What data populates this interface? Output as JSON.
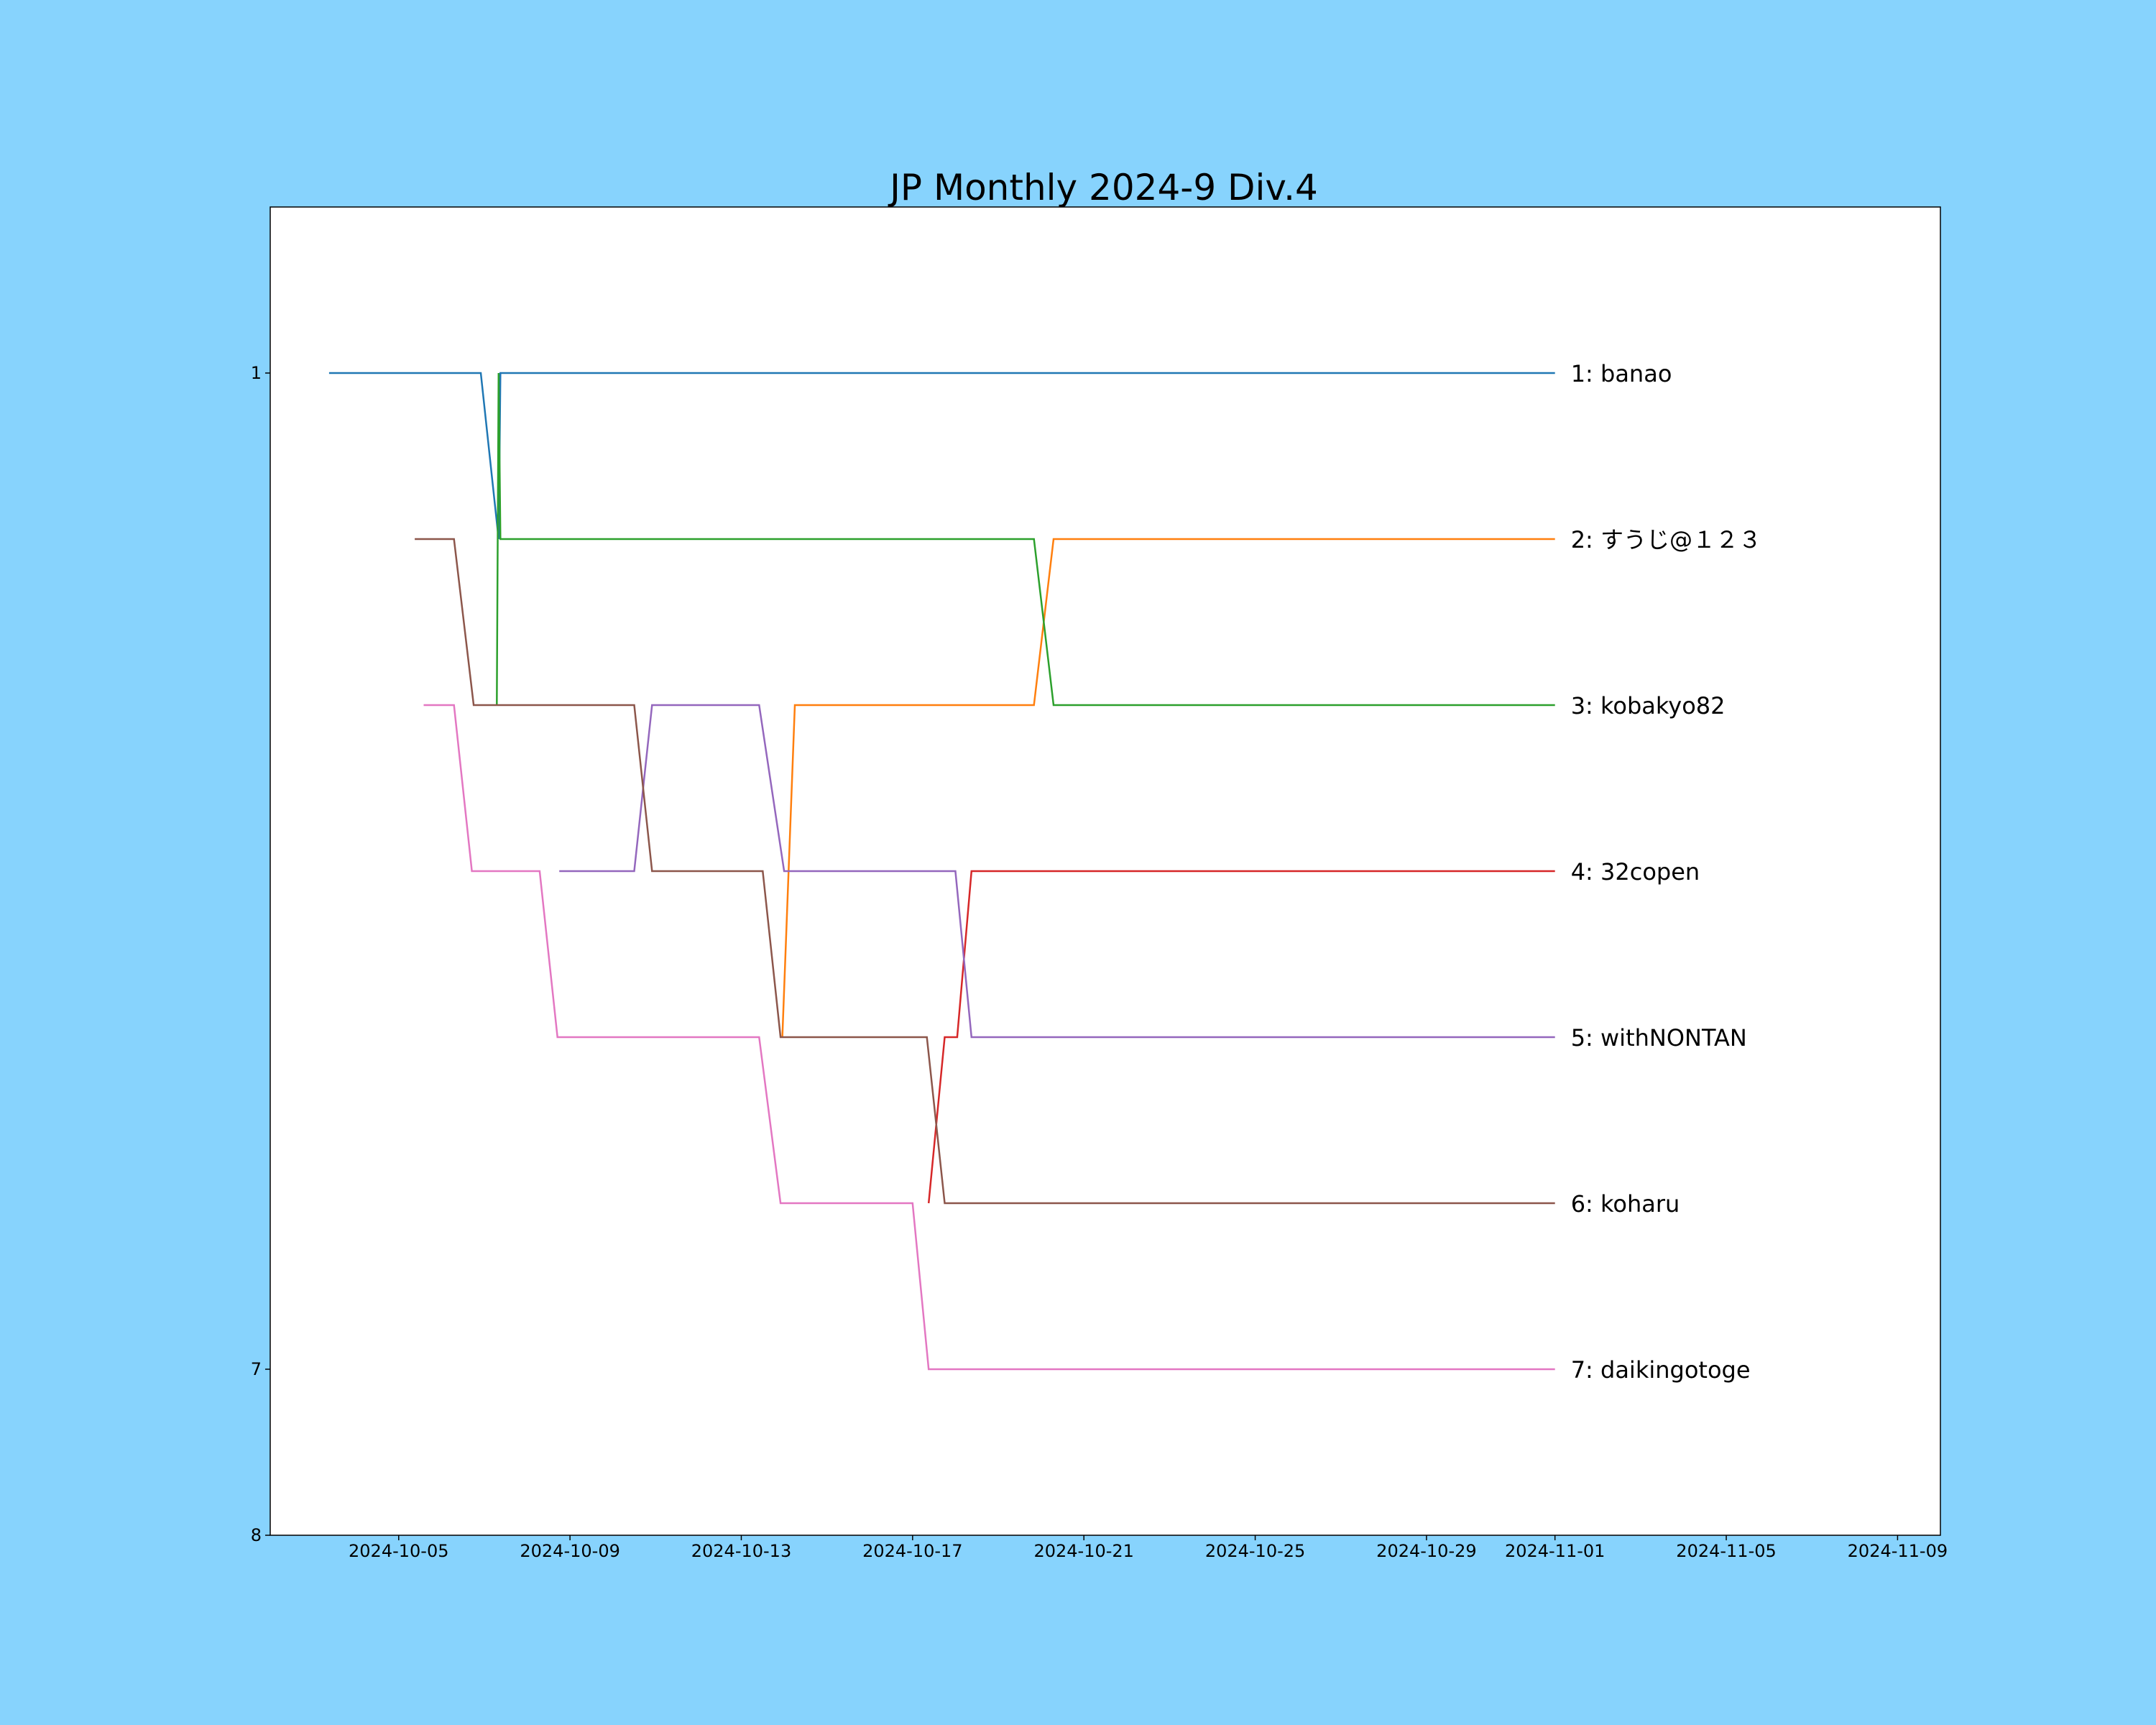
{
  "chart_data": {
    "type": "line",
    "title": "JP Monthly 2024-9 Div.4",
    "xlabel": "",
    "ylabel": "",
    "x_range": [
      "2024-10-02",
      "2024-11-10"
    ],
    "ylim": [
      8,
      0
    ],
    "y_ticks": [
      {
        "value": 1,
        "label": "1"
      },
      {
        "value": 7,
        "label": "7"
      },
      {
        "value": 8,
        "label": "8"
      }
    ],
    "x_ticks": [
      {
        "value": "2024-10-05",
        "label": "2024-10-05"
      },
      {
        "value": "2024-10-09",
        "label": "2024-10-09"
      },
      {
        "value": "2024-10-13",
        "label": "2024-10-13"
      },
      {
        "value": "2024-10-17",
        "label": "2024-10-17"
      },
      {
        "value": "2024-10-21",
        "label": "2024-10-21"
      },
      {
        "value": "2024-10-25",
        "label": "2024-10-25"
      },
      {
        "value": "2024-10-29",
        "label": "2024-10-29"
      },
      {
        "value": "2024-11-01",
        "label": "2024-11-01"
      },
      {
        "value": "2024-11-05",
        "label": "2024-11-05"
      },
      {
        "value": "2024-11-09",
        "label": "2024-11-09"
      }
    ],
    "grid": false,
    "legend": "line-end labels",
    "series": [
      {
        "name": "1: banao",
        "color": "#1f77b4",
        "points": [
          [
            "2024-10-03 09:00",
            1
          ],
          [
            "2024-10-06 22:00",
            1
          ],
          [
            "2024-10-07 08:00",
            2
          ],
          [
            "2024-10-07 09:00",
            1
          ],
          [
            "2024-11-01 00:00",
            1
          ]
        ]
      },
      {
        "name": "2: すうじ@１２３",
        "color": "#ff7f0e",
        "points": [
          [
            "2024-10-13 23:00",
            5
          ],
          [
            "2024-10-14 06:00",
            3
          ],
          [
            "2024-10-19 20:00",
            3
          ],
          [
            "2024-10-20 07:00",
            2
          ],
          [
            "2024-11-01 00:00",
            2
          ]
        ]
      },
      {
        "name": "3: kobakyo82",
        "color": "#2ca02c",
        "points": [
          [
            "2024-10-07 07:00",
            3
          ],
          [
            "2024-10-07 08:00",
            1
          ],
          [
            "2024-10-07 09:00",
            2
          ],
          [
            "2024-10-19 20:00",
            2
          ],
          [
            "2024-10-20 07:00",
            3
          ],
          [
            "2024-11-01 00:00",
            3
          ]
        ]
      },
      {
        "name": "4: 32copen",
        "color": "#d62728",
        "points": [
          [
            "2024-10-17 09:00",
            6
          ],
          [
            "2024-10-17 18:00",
            5
          ],
          [
            "2024-10-18 01:00",
            5
          ],
          [
            "2024-10-18 09:00",
            4
          ],
          [
            "2024-11-01 00:00",
            4
          ]
        ]
      },
      {
        "name": "5: withNONTAN",
        "color": "#9467bd",
        "points": [
          [
            "2024-10-08 18:00",
            4
          ],
          [
            "2024-10-10 12:00",
            4
          ],
          [
            "2024-10-10 22:00",
            3
          ],
          [
            "2024-10-13 10:00",
            3
          ],
          [
            "2024-10-14 00:00",
            4
          ],
          [
            "2024-10-18 00:00",
            4
          ],
          [
            "2024-10-18 09:00",
            5
          ],
          [
            "2024-11-01 00:00",
            5
          ]
        ]
      },
      {
        "name": "6: koharu",
        "color": "#8c564b",
        "points": [
          [
            "2024-10-05 09:00",
            2
          ],
          [
            "2024-10-06 07:00",
            2
          ],
          [
            "2024-10-06 18:00",
            3
          ],
          [
            "2024-10-10 12:00",
            3
          ],
          [
            "2024-10-10 22:00",
            4
          ],
          [
            "2024-10-13 12:00",
            4
          ],
          [
            "2024-10-13 22:00",
            5
          ],
          [
            "2024-10-17 08:00",
            5
          ],
          [
            "2024-10-17 18:00",
            6
          ],
          [
            "2024-11-01 00:00",
            6
          ]
        ]
      },
      {
        "name": "7: daikingotoge",
        "color": "#e377c2",
        "points": [
          [
            "2024-10-05 14:00",
            3
          ],
          [
            "2024-10-06 07:00",
            3
          ],
          [
            "2024-10-06 17:00",
            4
          ],
          [
            "2024-10-08 07:00",
            4
          ],
          [
            "2024-10-08 17:00",
            5
          ],
          [
            "2024-10-13 10:00",
            5
          ],
          [
            "2024-10-13 22:00",
            6
          ],
          [
            "2024-10-17 00:00",
            6
          ],
          [
            "2024-10-17 09:00",
            7
          ],
          [
            "2024-11-01 00:00",
            7
          ]
        ]
      }
    ]
  }
}
